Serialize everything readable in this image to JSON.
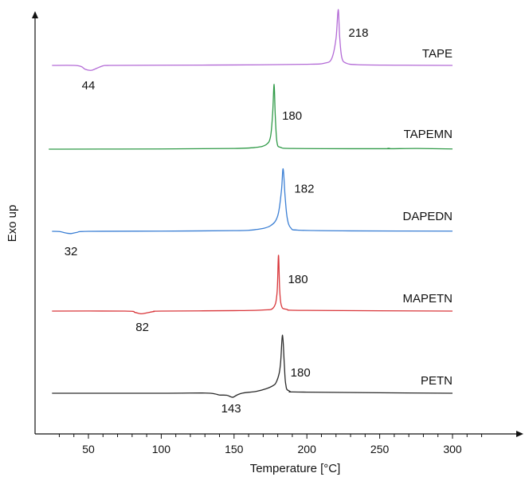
{
  "chart_data": {
    "type": "line",
    "title": "",
    "xlabel": "Temperature [°C]",
    "ylabel": "Exo up",
    "xlim": [
      23,
      330
    ],
    "x_ticks": [
      50,
      100,
      150,
      200,
      250,
      300
    ],
    "y_ticks_shown": false,
    "grid": false,
    "legend": "none (series labelled inline at right end of each trace)",
    "series": [
      {
        "name": "TAPE",
        "color": "#b36ad6",
        "points": [
          [
            25,
            0
          ],
          [
            40,
            0
          ],
          [
            45,
            -0.05
          ],
          [
            48,
            -0.18
          ],
          [
            52,
            -0.22
          ],
          [
            56,
            -0.12
          ],
          [
            60,
            -0.02
          ],
          [
            65,
            0
          ],
          [
            100,
            0.01
          ],
          [
            150,
            0.02
          ],
          [
            200,
            0.05
          ],
          [
            212,
            0.1
          ],
          [
            217,
            0.3
          ],
          [
            220,
            1.2
          ],
          [
            221.5,
            2.5
          ],
          [
            222.5,
            1.3
          ],
          [
            224,
            0.35
          ],
          [
            227,
            0.1
          ],
          [
            235,
            0.03
          ],
          [
            260,
            0.01
          ],
          [
            300,
            0
          ]
        ],
        "annotations": [
          {
            "label": "44",
            "x": 50,
            "kind": "endotherm"
          },
          {
            "label": "218",
            "x": 222,
            "kind": "peak"
          }
        ]
      },
      {
        "name": "TAPEMN",
        "color": "#2f9a47",
        "points": [
          [
            25,
            0
          ],
          [
            30,
            0
          ],
          [
            100,
            0.01
          ],
          [
            150,
            0.03
          ],
          [
            165,
            0.08
          ],
          [
            172,
            0.2
          ],
          [
            175,
            0.55
          ],
          [
            176.5,
            1.6
          ],
          [
            177.5,
            2.9
          ],
          [
            178.3,
            1.5
          ],
          [
            179.5,
            0.3
          ],
          [
            182,
            0.08
          ],
          [
            190,
            0.03
          ],
          [
            230,
            0.02
          ],
          [
            255,
            0.02
          ],
          [
            256,
            0.04
          ],
          [
            257,
            0.02
          ],
          [
            276,
            0.03
          ],
          [
            300,
            0.01
          ]
        ],
        "annotations": [
          {
            "label": "180",
            "x": 177.5,
            "kind": "peak"
          }
        ]
      },
      {
        "name": "DAPEDN",
        "color": "#3b7fd4",
        "points": [
          [
            25,
            0
          ],
          [
            30,
            -0.01
          ],
          [
            35,
            -0.08
          ],
          [
            38,
            -0.1
          ],
          [
            42,
            -0.05
          ],
          [
            50,
            0
          ],
          [
            100,
            0.01
          ],
          [
            150,
            0.03
          ],
          [
            165,
            0.08
          ],
          [
            175,
            0.25
          ],
          [
            180,
            0.7
          ],
          [
            182.5,
            1.8
          ],
          [
            183.7,
            2.8
          ],
          [
            185,
            1.6
          ],
          [
            186.5,
            0.6
          ],
          [
            189,
            0.15
          ],
          [
            195,
            0.05
          ],
          [
            230,
            0.02
          ],
          [
            300,
            0.01
          ]
        ],
        "annotations": [
          {
            "label": "32",
            "x": 38,
            "kind": "endotherm"
          },
          {
            "label": "182",
            "x": 183.7,
            "kind": "peak"
          }
        ]
      },
      {
        "name": "MAPETN",
        "color": "#d9363a",
        "points": [
          [
            25,
            0
          ],
          [
            75,
            0
          ],
          [
            82,
            -0.06
          ],
          [
            86,
            -0.12
          ],
          [
            90,
            -0.08
          ],
          [
            95,
            -0.02
          ],
          [
            100,
            0
          ],
          [
            150,
            0.02
          ],
          [
            170,
            0.05
          ],
          [
            177,
            0.15
          ],
          [
            179.5,
            0.8
          ],
          [
            180.5,
            2.5
          ],
          [
            181.3,
            1.0
          ],
          [
            182.5,
            0.25
          ],
          [
            186,
            0.08
          ],
          [
            200,
            0.03
          ],
          [
            300,
            0
          ]
        ],
        "annotations": [
          {
            "label": "82",
            "x": 87,
            "kind": "endotherm"
          },
          {
            "label": "180",
            "x": 180.5,
            "kind": "peak"
          }
        ]
      },
      {
        "name": "PETN",
        "color": "#2a2a2a",
        "points": [
          [
            25,
            0
          ],
          [
            100,
            0
          ],
          [
            130,
            0.01
          ],
          [
            137,
            -0.03
          ],
          [
            140,
            -0.08
          ],
          [
            145,
            -0.09
          ],
          [
            149,
            -0.18
          ],
          [
            152,
            -0.08
          ],
          [
            156,
            0.01
          ],
          [
            165,
            0.08
          ],
          [
            172,
            0.2
          ],
          [
            177,
            0.35
          ],
          [
            179,
            0.5
          ],
          [
            181,
            0.9
          ],
          [
            182,
            1.4
          ],
          [
            183.3,
            2.6
          ],
          [
            184.5,
            1.3
          ],
          [
            185.5,
            0.4
          ],
          [
            188,
            0.1
          ],
          [
            200,
            0.05
          ],
          [
            300,
            0
          ]
        ],
        "annotations": [
          {
            "label": "143",
            "x": 148,
            "kind": "endotherm"
          },
          {
            "label": "180",
            "x": 183.3,
            "kind": "peak"
          }
        ]
      }
    ]
  }
}
